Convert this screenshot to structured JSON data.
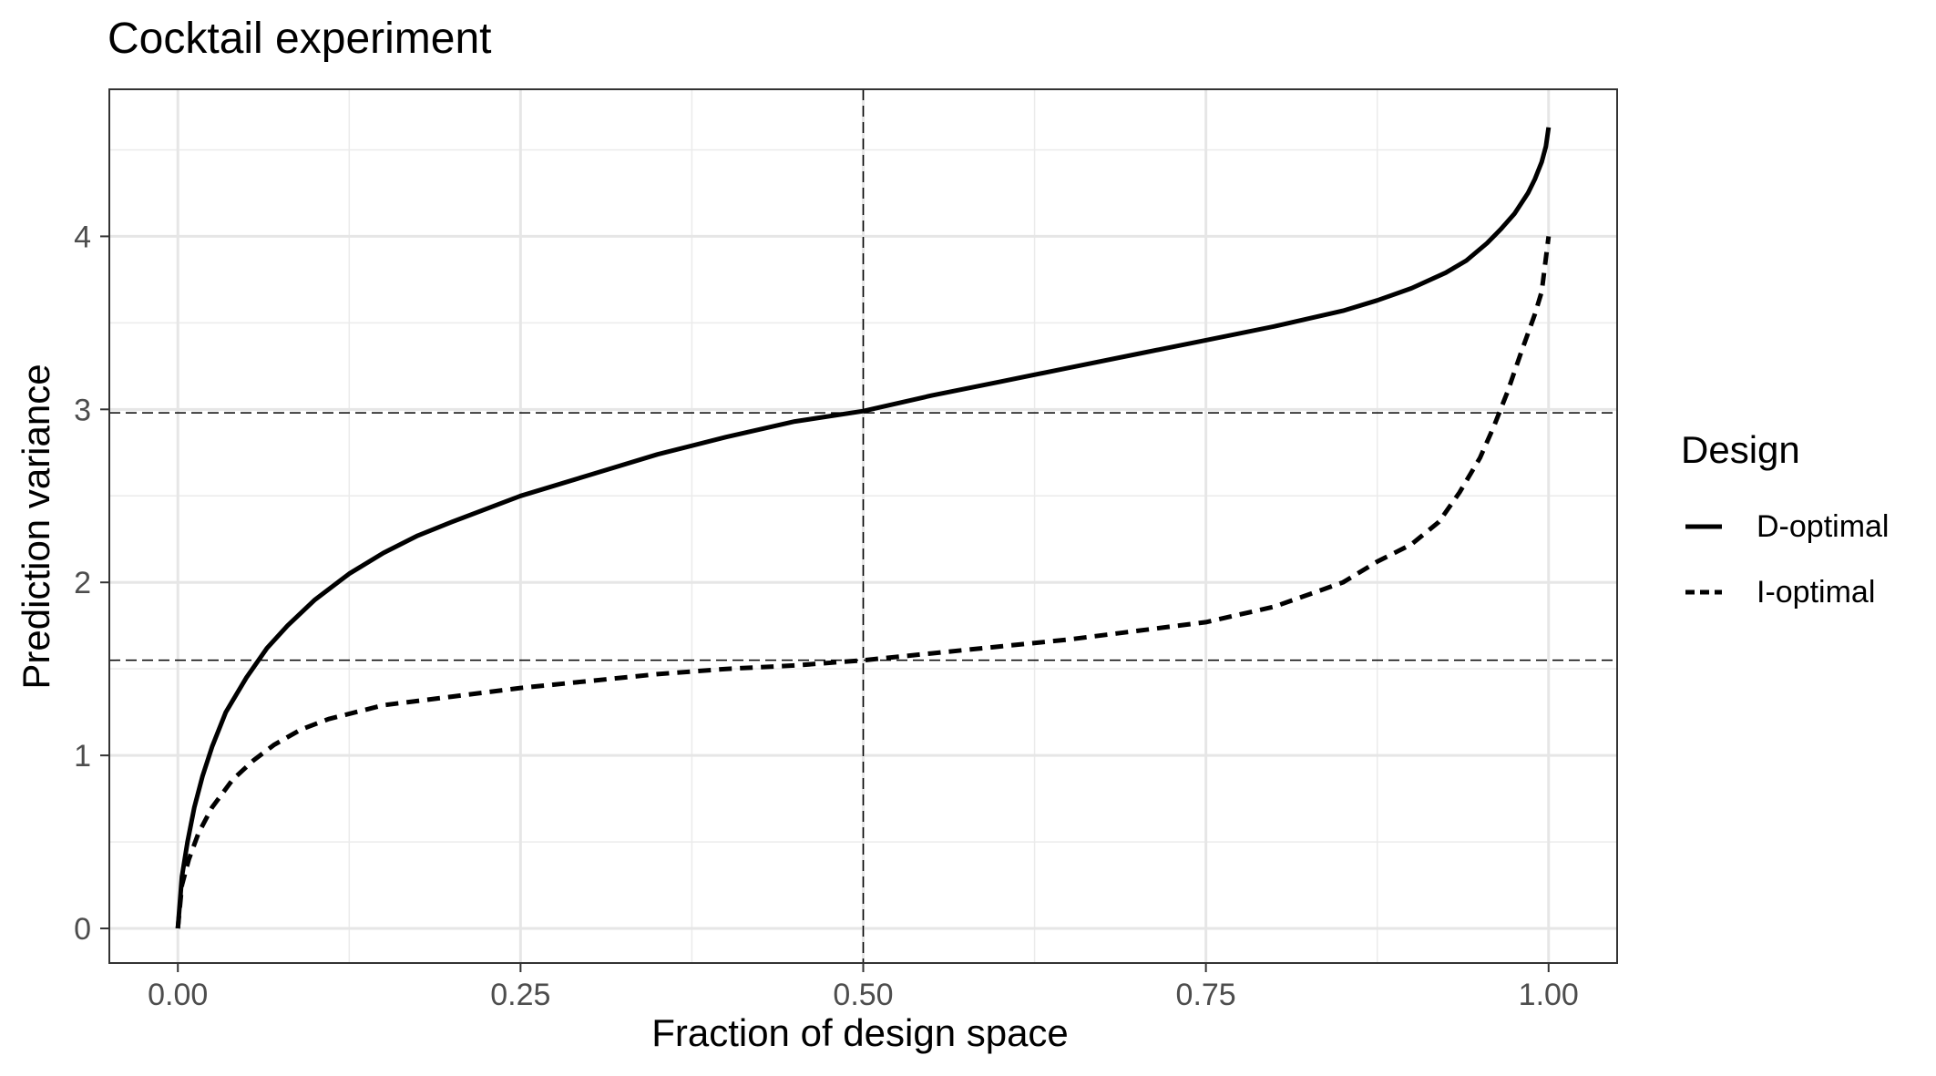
{
  "chart_data": {
    "type": "line",
    "title": "Cocktail experiment",
    "xlabel": "Fraction of design space",
    "ylabel": "Prediction variance",
    "xlim": [
      -0.05,
      1.05
    ],
    "ylim": [
      -0.2,
      4.85
    ],
    "x_ticks": [
      0.0,
      0.25,
      0.5,
      0.75,
      1.0
    ],
    "x_tick_labels": [
      "0.00",
      "0.25",
      "0.50",
      "0.75",
      "1.00"
    ],
    "y_ticks": [
      0,
      1,
      2,
      3,
      4
    ],
    "y_tick_labels": [
      "0",
      "1",
      "2",
      "3",
      "4"
    ],
    "grid": true,
    "legend": {
      "title": "Design",
      "position": "right",
      "entries": [
        {
          "label": "D-optimal",
          "linetype": "solid"
        },
        {
          "label": "I-optimal",
          "linetype": "dashed"
        }
      ]
    },
    "reference_lines": {
      "vertical": [
        0.5
      ],
      "horizontal": [
        2.98,
        1.55
      ]
    },
    "series": [
      {
        "name": "D-optimal",
        "linetype": "solid",
        "color": "#000000",
        "x": [
          0.0,
          0.003,
          0.007,
          0.012,
          0.018,
          0.025,
          0.035,
          0.05,
          0.065,
          0.08,
          0.1,
          0.125,
          0.15,
          0.175,
          0.2,
          0.25,
          0.3,
          0.35,
          0.4,
          0.45,
          0.5,
          0.55,
          0.6,
          0.65,
          0.7,
          0.75,
          0.8,
          0.85,
          0.875,
          0.9,
          0.925,
          0.94,
          0.955,
          0.965,
          0.975,
          0.985,
          0.99,
          0.995,
          0.998,
          1.0
        ],
        "y": [
          0.0,
          0.3,
          0.5,
          0.7,
          0.88,
          1.05,
          1.25,
          1.45,
          1.62,
          1.75,
          1.9,
          2.05,
          2.17,
          2.27,
          2.35,
          2.5,
          2.62,
          2.74,
          2.84,
          2.93,
          2.99,
          3.08,
          3.16,
          3.24,
          3.32,
          3.4,
          3.48,
          3.57,
          3.63,
          3.7,
          3.79,
          3.86,
          3.96,
          4.04,
          4.13,
          4.25,
          4.33,
          4.43,
          4.52,
          4.63
        ]
      },
      {
        "name": "I-optimal",
        "linetype": "dashed",
        "color": "#000000",
        "x": [
          0.0,
          0.003,
          0.008,
          0.015,
          0.025,
          0.04,
          0.055,
          0.07,
          0.09,
          0.11,
          0.13,
          0.15,
          0.2,
          0.25,
          0.3,
          0.35,
          0.4,
          0.45,
          0.5,
          0.55,
          0.6,
          0.65,
          0.7,
          0.75,
          0.8,
          0.85,
          0.875,
          0.9,
          0.92,
          0.935,
          0.95,
          0.96,
          0.97,
          0.98,
          0.99,
          0.995,
          1.0
        ],
        "y": [
          0.0,
          0.25,
          0.4,
          0.55,
          0.7,
          0.86,
          0.97,
          1.06,
          1.15,
          1.21,
          1.25,
          1.29,
          1.34,
          1.39,
          1.43,
          1.47,
          1.5,
          1.52,
          1.55,
          1.59,
          1.63,
          1.67,
          1.72,
          1.77,
          1.86,
          2.0,
          2.12,
          2.22,
          2.35,
          2.52,
          2.72,
          2.9,
          3.1,
          3.33,
          3.55,
          3.68,
          4.0
        ]
      }
    ]
  }
}
